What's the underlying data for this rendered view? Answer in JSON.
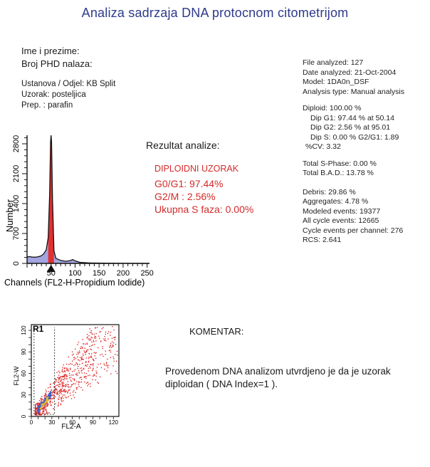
{
  "title": "Analiza sadrzaja DNA protocnom citometrijom",
  "patient": {
    "name_label": "Ime i prezime:",
    "phd_label": "Broj PHD nalaza:",
    "institution": "Ustanova / Odjel: KB Split",
    "sample": "Uzorak: posteljica",
    "prep": "Prep. : parafin"
  },
  "analysis": {
    "file": "File analyzed: 127",
    "date": "Date analyzed: 21-Oct-2004",
    "model": "Model: 1DA0n_DSF",
    "type": "Analysis type: Manual analysis",
    "diploid": "Diploid: 100.00 %",
    "dip_g1": "Dip G1: 97.44 % at 50.14",
    "dip_g2": "Dip G2: 2.56 % at 95.01",
    "dip_s": "Dip S: 0.00 %   G2/G1: 1.89",
    "cv": "%CV: 3.32",
    "total_s": "Total S-Phase: 0.00 %",
    "total_bad": "Total B.A.D.: 13.78 %",
    "debris": "Debris: 29.86 %",
    "aggregates": "Aggregates: 4.78 %",
    "modeled": "Modeled events: 19377",
    "all_cycle": "All cycle events: 12665",
    "per_channel": "Cycle events per channel: 276",
    "rcs": "RCS: 2.641"
  },
  "result": {
    "heading": "Rezultat analize:",
    "verdict": "DIPLOIDNI UZORAK",
    "g0g1": "G0/G1: 97.44%",
    "g2m": "G2/M : 2.56%",
    "s_phase": "Ukupna S faza: 0.00%"
  },
  "comment": {
    "heading": "KOMENTAR:",
    "text": "Provedenom DNA analizom  utvrdjeno je da je uzorak diploidan ( DNA Index=1 )."
  },
  "chart_data": [
    {
      "type": "area",
      "xlabel": "Channels  (FL2-H-Propidium  Iodide)",
      "ylabel": "Number",
      "xlim": [
        0,
        255
      ],
      "ylim": [
        0,
        3000
      ],
      "x_ticks": [
        50,
        100,
        150,
        200,
        250
      ],
      "y_ticks": [
        0,
        700,
        1400,
        2100,
        2800
      ],
      "x": [
        0,
        5,
        10,
        15,
        20,
        25,
        30,
        35,
        40,
        44,
        47,
        49,
        50,
        51,
        53,
        56,
        60,
        70,
        80,
        90,
        95,
        100,
        110,
        130,
        160,
        200,
        255
      ],
      "y": [
        150,
        160,
        150,
        145,
        150,
        160,
        180,
        230,
        320,
        600,
        1600,
        2850,
        3000,
        2850,
        1500,
        300,
        120,
        70,
        50,
        65,
        90,
        60,
        25,
        10,
        5,
        2,
        0
      ],
      "colors": {
        "line": "#111111",
        "g1_fill": "#e03030",
        "debris_fill": "#8c8fd8"
      }
    },
    {
      "type": "scatter",
      "region": "R1",
      "xlabel": "FL2-A",
      "ylabel": "FL2-W",
      "xlim": [
        0,
        128
      ],
      "ylim": [
        0,
        128
      ],
      "x_ticks": [
        0,
        30,
        60,
        90,
        120
      ],
      "y_ticks": [
        0,
        30,
        60,
        90,
        120
      ],
      "colors": {
        "points": "#e02a2a",
        "dense": "#3a5fd0",
        "core": "#f0c020"
      }
    }
  ]
}
